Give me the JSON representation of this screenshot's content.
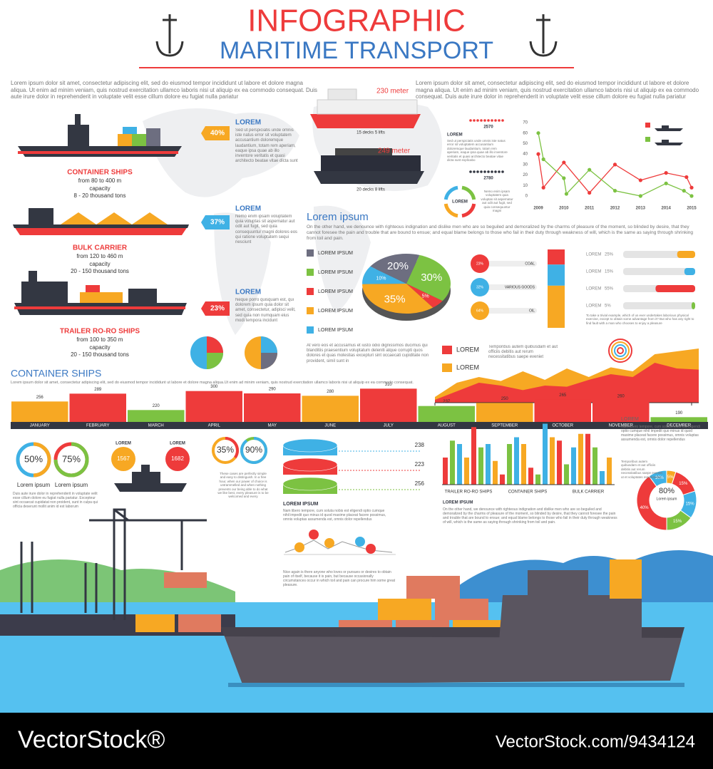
{
  "header": {
    "title": "INFOGRAPHIC",
    "subtitle": "MARITIME TRANSPORT"
  },
  "intro": [
    "Lorem ipsum dolor sit amet, consectetur adipiscing elit, sed do eiusmod tempor incididunt ut labore et dolore magna aliqua. Ut enim ad minim veniam, quis nostrud exercitation ullamco laboris nisi ut aliquip ex ea commodo consequat. Duis aute irure dolor in reprehenderit in voluptate velit esse cillum dolore eu fugiat nulla pariatur",
    "Lorem ipsum dolor sit amet, consectetur adipiscing elit, sed do eiusmod tempor incididunt ut labore et dolore magna aliqua. Ut enim ad minim veniam, quis nostrud exercitation ullamco laboris nisi ut aliquip ex ea commodo consequat. Duis aute irure dolor in reprehenderit in voluptate velit esse cillum dolore eu fugiat nulla pariatur"
  ],
  "ships": [
    {
      "name": "CONTAINER SHIPS",
      "length": "from 80 to 400 m",
      "capacity_label": "capacity",
      "capacity": "8 - 20 thousand tons",
      "percent": "40%",
      "color": "#f7a823",
      "heading": "LOREM",
      "text": "Sed ut perspiciatis unde omnis iste natus error sit voluptatem accusantium doloremque laudantium, totam rem aperiam, eaque ipsa quae ab illo inventore veritatis et quasi architecto beatae vitae dicta sunt explicabo"
    },
    {
      "name": "BULK CARRIER",
      "length": "from 120 to 460 m",
      "capacity_label": "capacity",
      "capacity": "20 - 150 thousand tons",
      "percent": "37%",
      "color": "#3fb1e5",
      "heading": "LOREM",
      "text": "Nemo enim ipsam voluptatem quia voluptas sit aspernatur aut odit aut fugit, sed quia consequuntur magni dolores eos qui ratione voluptatem sequi nesciunt"
    },
    {
      "name": "TRAILER RO-RO SHIPS",
      "length": "from 100 to 350 m",
      "capacity_label": "capacity",
      "capacity": "20 - 150 thousand tons",
      "percent": "23%",
      "color": "#ee3b3b",
      "heading": "LOREM",
      "text": "Neque porro quisquam est, qui dolorem ipsum quia dolor sit amet, consectetur, adipisci velit, sed quia non numquam eius modi tempora incidunt"
    }
  ],
  "cruise": [
    {
      "length": "230 meter",
      "decks": "15 decks 5 lifts"
    },
    {
      "length": "249 meter",
      "decks": "20 decks 8 lifts"
    }
  ],
  "passengers": {
    "counts": [
      "2570",
      "2780"
    ],
    "heading": "LOREM",
    "text": "Sed ut perspiciatis unde omnis iste natus error sit voluptatem accusantium doloremque laudantium, totam rem aperiam, eaque ipsa quae ab illo inventore veritatis et quasi architecto beatae vitae dicta sunt explicabo"
  },
  "cycle": {
    "label": "LOREM",
    "text": "Nemo enim ipsam voluptatem quia voluptas sit aspernatur aut odit aut fugit, sed quia consequuntur magni"
  },
  "line_chart": {
    "type": "line",
    "xlim": [
      2009,
      2015
    ],
    "xticks": [
      2009,
      2010,
      2011,
      2012,
      2013,
      2014,
      2015
    ],
    "ylim": [
      0,
      70
    ],
    "yticks": [
      0,
      10,
      20,
      30,
      40,
      50,
      60,
      70
    ],
    "series": [
      {
        "color": "#ee3b3b",
        "x": [
          2009,
          2009.2,
          2010,
          2011,
          2012,
          2013,
          2014,
          2014.8,
          2015
        ],
        "values": [
          40,
          8,
          32,
          3,
          30,
          15,
          22,
          18,
          8
        ]
      },
      {
        "color": "#7cc242",
        "x": [
          2009,
          2009.2,
          2010,
          2010.1,
          2011,
          2012,
          2013,
          2014,
          2014.7,
          2015
        ],
        "values": [
          60,
          35,
          17,
          2,
          25,
          5,
          0,
          12,
          5,
          0
        ]
      }
    ]
  },
  "lorem_section": {
    "heading": "Lorem ipsum",
    "text": "On the other hand, we denounce with righteous indignation and dislike men who are so beguiled and demoralized by the charms of pleasure of the moment, so blinded by desire, that they cannot foresee the pain and trouble that are bound to ensue; and equal blame belongs to those who fail in their duty through weakness of will, which is the same as saying through shrinking from toil and pain.",
    "footer_text": "At vero eos et accusamus et iusto odio dignissimos ducimus qui blanditiis praesentium voluptatum deleniti atque corrupti quos dolores et quas molestias excepturi sint occaecati cupiditate non provident, simil sunt in"
  },
  "pie": {
    "type": "pie",
    "legend": [
      "LOREM IPSUM",
      "LOREM IPSUM",
      "LOREM IPSUM",
      "LOREM IPSUM",
      "LOREM IPSUM"
    ],
    "legend_colors": [
      "#6d6e80",
      "#7cc242",
      "#ee3b3b",
      "#f7a823",
      "#3fb1e5"
    ],
    "values": [
      30,
      5,
      35,
      10,
      20
    ],
    "value_labels": [
      "30%",
      "5%",
      "35%",
      "10%",
      "20%"
    ],
    "colors": [
      "#7cc242",
      "#ee3b3b",
      "#f7a823",
      "#3fb1e5",
      "#6d6e80"
    ]
  },
  "goods": {
    "items": [
      {
        "name": "COAL",
        "value": 23,
        "label": "23%",
        "color": "#ee3b3b"
      },
      {
        "name": "VARIOUS GOODS",
        "value": 32,
        "label": "32%",
        "color": "#3fb1e5"
      },
      {
        "name": "OIL",
        "value": 64,
        "label": "64%",
        "color": "#f7a823"
      }
    ]
  },
  "progress": {
    "items": [
      {
        "name": "LOREM",
        "value": 25,
        "label": "25%",
        "color": "#f7a823"
      },
      {
        "name": "LOREM",
        "value": 15,
        "label": "15%",
        "color": "#3fb1e5"
      },
      {
        "name": "LOREM",
        "value": 55,
        "label": "55%",
        "color": "#ee3b3b"
      },
      {
        "name": "LOREM",
        "value": 5,
        "label": "5%",
        "color": "#7cc242"
      }
    ],
    "text": "To take a trivial example, which of us ever undertakes laborious physical exercise, except to obtain some advantage from it? But who has any right to find fault with a man who chooses to enjoy a pleasure"
  },
  "area": {
    "type": "area",
    "ylim": [
      0,
      100
    ],
    "legend": [
      "LOREM",
      "LOREM"
    ],
    "text": "Temporibus autem quibusdam et aut officiis debitis aut rerum necessitatibus saepe eveniet",
    "series": [
      {
        "color": "#f7a823",
        "values": [
          10,
          35,
          45,
          38,
          55,
          40,
          60,
          45,
          62,
          55,
          85,
          90,
          95
        ]
      },
      {
        "color": "#ee3b3b",
        "values": [
          5,
          20,
          35,
          30,
          22,
          30,
          28,
          40,
          50,
          45,
          70,
          60,
          58
        ]
      }
    ]
  },
  "month_chart": {
    "type": "bar",
    "title": "CONTAINER SHIPS",
    "text": "Lorem ipsum dolor sit amet, consectetur adipiscing elit, sed do eiusmod tempor incididunt ut labore et dolore magna aliqua.Ut enim ad minim veniam, quis nostrud exercitation ullamco laboris nisi ut aliquip ex ea commodo consequat.",
    "ylim": [
      170,
      320
    ],
    "categories": [
      "JANUARY",
      "FEBRUARY",
      "MARCH",
      "APRIL",
      "MAY",
      "JUNE",
      "JULY",
      "AUGUST",
      "SEPTEMBER",
      "OCTOBER",
      "NOVEMBER",
      "DECEMBER"
    ],
    "values": [
      256,
      289,
      220,
      300,
      290,
      280,
      310,
      237,
      250,
      265,
      260,
      190
    ],
    "colors": [
      "#f7a823",
      "#ee3b3b",
      "#7cc242",
      "#ee3b3b",
      "#ee3b3b",
      "#f7a823",
      "#ee3b3b",
      "#7cc242",
      "#f7a823",
      "#ee3b3b",
      "#ee3b3b",
      "#7cc242"
    ]
  },
  "rings": {
    "items": [
      {
        "value": 50,
        "label": "50%",
        "caption": "Lorem ipsum",
        "color": "#f7a823",
        "track": "#3fb1e5"
      },
      {
        "value": 75,
        "label": "75%",
        "caption": "Lorem ipsum",
        "color": "#7cc242",
        "track": "#ee3b3b"
      }
    ],
    "text": "Duis aute irure dolor in reprehenderit in voluptate velit esse cillum dolore eu fugiat nulla pariatur. Excepteur sint occaecat cupidatat non proident, sunt in culpa qui officia deserunt mollit anim id est laborum"
  },
  "counts": [
    {
      "label": "LOREM",
      "value": "1567",
      "color": "#f7a823"
    },
    {
      "label": "LOREM",
      "value": "1682",
      "color": "#ee3b3b"
    }
  ],
  "rings2": {
    "items": [
      {
        "value": 35,
        "label": "35%",
        "color": "#ee3b3b",
        "track": "#f7a823"
      },
      {
        "value": 90,
        "label": "90%",
        "color": "#3fb1e5",
        "track": "#7cc242"
      }
    ],
    "text": "These cases are perfectly simple and easy to distinguish. In a free hour, when our power of choice is untrammelled and when nothing prevents our being able to do what we like best, every pleasure is to be welcomed and every"
  },
  "stack": {
    "values": [
      238,
      223,
      256
    ],
    "colors": [
      "#3fb1e5",
      "#ee3b3b",
      "#7cc242"
    ],
    "heading": "LOREM IPSUM",
    "text": "Nam libero tempore, cum soluta nobis est eligendi optio cumque nihil impedit quo minus id quod maxime placeat facere possimus, omnis voluptas assumenda est, omnis dolor repellendus"
  },
  "nice": {
    "text": "Nice again is there anyone who loves or pursues or desires to obtain pain of itself, because it is pain, but because occasionally circumstances occur in which toil and pain can procure him some great pleasure."
  },
  "group_bars": {
    "type": "bar",
    "ylim": [
      0,
      100
    ],
    "categories": [
      "TRAILER RO-RO SHIPS",
      "CONTAINER SHIPS",
      "BULK CARRIER"
    ],
    "colors": [
      "#ee3b3b",
      "#7cc242",
      "#3fb1e5",
      "#f7a823"
    ],
    "values": [
      40,
      65,
      60,
      40,
      85,
      55,
      60,
      35,
      15,
      60,
      70,
      60,
      25,
      15,
      90,
      70,
      65,
      30,
      55,
      75,
      75,
      55,
      20,
      40
    ],
    "heading": "LOREM IPSUM",
    "text": "On the other hand, we denounce with righteous indignation and dislike men who are so beguiled and demoralized by the charms of pleasure of the moment, so blinded by desire, that they cannot foresee the pain and trouble that are bound to ensue; and equal blame belongs to those who fail in their duty through weakness of will, which is the same as saying through shrinking from toil and pain."
  },
  "donut": {
    "type": "pie",
    "center": "80%",
    "center_label": "Lorem ipsum",
    "values": [
      10,
      5,
      15,
      15,
      15,
      40
    ],
    "value_labels": [
      "10%",
      "5%",
      "15%",
      "15%",
      "15%",
      "40%"
    ],
    "colors": [
      "#3fb1e5",
      "#f7a823",
      "#ee3b3b",
      "#3fb1e5",
      "#7cc242",
      "#ee3b3b"
    ],
    "heading": "LOREM",
    "text": "Nam libero tempore, cum soluta nobis est eligendi optio cumque nihil impedit quo minus id quod maxime placeat facere possimus, omnis voluptas assumenda est, omnis dolor repellendus",
    "note": "Temporibus autem quibusdam et aut officiis debitis aut rerum necessitatibus saepe eveniet ut et voluptates repudiandae"
  },
  "footer": {
    "left": "VectorStock®",
    "right": "VectorStock.com/9434124"
  }
}
